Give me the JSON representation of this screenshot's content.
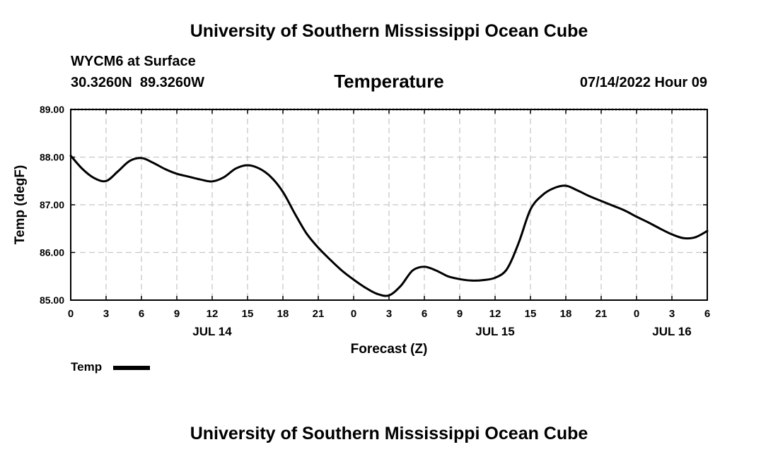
{
  "page": {
    "title_top": "University of Southern Mississippi Ocean Cube",
    "title_bottom": "University of Southern Mississippi Ocean Cube",
    "station": "WYCM6 at Surface",
    "coords": "30.3260N  89.3260W",
    "plot_title": "Temperature",
    "datetime": "07/14/2022 Hour 09"
  },
  "legend": {
    "label": "Temp"
  },
  "colors": {
    "line": "#000000",
    "grid": "#c8c8c8"
  },
  "chart_data": {
    "type": "line",
    "title": "Temperature",
    "xlabel": "Forecast (Z)",
    "ylabel": "Temp (degF)",
    "ylim": [
      85.0,
      89.0
    ],
    "xlim": [
      0,
      54
    ],
    "grid": true,
    "x_ticks": [
      0,
      3,
      6,
      9,
      12,
      15,
      18,
      21,
      24,
      27,
      30,
      33,
      36,
      39,
      42,
      45,
      48,
      51,
      54
    ],
    "x_tick_labels": [
      "0",
      "3",
      "6",
      "9",
      "12",
      "15",
      "18",
      "21",
      "0",
      "3",
      "6",
      "9",
      "12",
      "15",
      "18",
      "21",
      "0",
      "3",
      "6"
    ],
    "y_ticks": [
      85.0,
      86.0,
      87.0,
      88.0,
      89.0
    ],
    "y_tick_labels": [
      "85.00",
      "86.00",
      "87.00",
      "88.00",
      "89.00"
    ],
    "day_labels": [
      {
        "x": 12,
        "label": "JUL 14"
      },
      {
        "x": 36,
        "label": "JUL 15"
      },
      {
        "x": 51,
        "label": "JUL 16"
      }
    ],
    "series": [
      {
        "name": "Temp",
        "x": [
          0,
          1,
          2,
          3,
          4,
          5,
          6,
          7,
          8,
          9,
          10,
          11,
          12,
          13,
          14,
          15,
          16,
          17,
          18,
          19,
          20,
          21,
          22,
          23,
          24,
          25,
          26,
          27,
          28,
          29,
          30,
          31,
          32,
          33,
          34,
          35,
          36,
          37,
          38,
          39,
          40,
          41,
          42,
          43,
          44,
          45,
          46,
          47,
          48,
          49,
          50,
          51,
          52,
          53,
          54
        ],
        "values": [
          88.03,
          87.75,
          87.56,
          87.5,
          87.7,
          87.92,
          87.98,
          87.88,
          87.75,
          87.65,
          87.59,
          87.53,
          87.49,
          87.58,
          87.76,
          87.83,
          87.76,
          87.58,
          87.27,
          86.82,
          86.4,
          86.1,
          85.85,
          85.62,
          85.43,
          85.26,
          85.13,
          85.1,
          85.3,
          85.62,
          85.7,
          85.62,
          85.5,
          85.44,
          85.41,
          85.42,
          85.47,
          85.65,
          86.2,
          86.9,
          87.2,
          87.35,
          87.4,
          87.3,
          87.18,
          87.08,
          86.98,
          86.88,
          86.75,
          86.63,
          86.5,
          86.38,
          86.3,
          86.32,
          86.45
        ]
      }
    ]
  }
}
